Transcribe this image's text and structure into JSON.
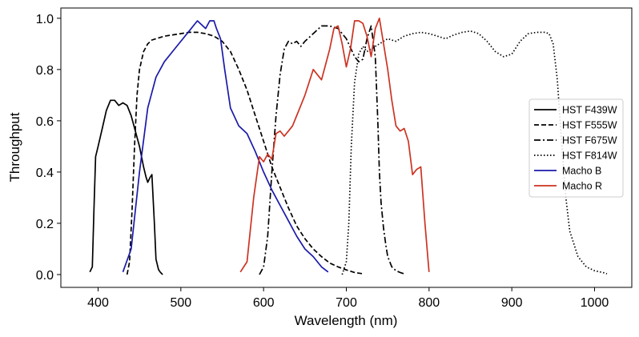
{
  "chart_data": {
    "type": "line",
    "title": "",
    "xlabel": "Wavelength (nm)",
    "ylabel": "Throughput",
    "xlim": [
      355,
      1045
    ],
    "ylim": [
      -0.05,
      1.04
    ],
    "xticks": [
      400,
      500,
      600,
      700,
      800,
      900,
      1000
    ],
    "yticks": [
      0.0,
      0.2,
      0.4,
      0.6,
      0.8,
      1.0
    ],
    "xtick_labels": [
      "400",
      "500",
      "600",
      "700",
      "800",
      "900",
      "1000"
    ],
    "ytick_labels": [
      "0.0",
      "0.2",
      "0.4",
      "0.6",
      "0.8",
      "1.0"
    ],
    "grid": false,
    "legend_position": "center-right",
    "series": [
      {
        "name": "HST F439W",
        "color": "#000000",
        "dash": "solid",
        "x": [
          390,
          393,
          395,
          397,
          400,
          405,
          410,
          415,
          420,
          425,
          430,
          435,
          440,
          445,
          450,
          455,
          458,
          460,
          463,
          465,
          468,
          470,
          473,
          475,
          478
        ],
        "y": [
          0.01,
          0.03,
          0.25,
          0.46,
          0.5,
          0.57,
          0.64,
          0.68,
          0.68,
          0.66,
          0.67,
          0.66,
          0.62,
          0.56,
          0.5,
          0.42,
          0.38,
          0.36,
          0.38,
          0.39,
          0.2,
          0.06,
          0.02,
          0.01,
          0.0
        ]
      },
      {
        "name": "HST F555W",
        "color": "#000000",
        "dash": "dashed",
        "x": [
          435,
          438,
          441,
          444,
          447,
          450,
          455,
          460,
          465,
          470,
          480,
          490,
          500,
          510,
          520,
          530,
          540,
          550,
          560,
          570,
          580,
          590,
          600,
          610,
          620,
          630,
          640,
          650,
          660,
          670,
          680,
          690,
          700,
          710,
          720
        ],
        "y": [
          0.0,
          0.05,
          0.25,
          0.5,
          0.7,
          0.8,
          0.87,
          0.9,
          0.915,
          0.92,
          0.93,
          0.935,
          0.94,
          0.945,
          0.945,
          0.94,
          0.93,
          0.91,
          0.87,
          0.8,
          0.72,
          0.62,
          0.52,
          0.42,
          0.34,
          0.26,
          0.19,
          0.14,
          0.1,
          0.07,
          0.045,
          0.03,
          0.018,
          0.008,
          0.003
        ]
      },
      {
        "name": "HST F675W",
        "color": "#000000",
        "dash": "dashdot",
        "x": [
          595,
          600,
          605,
          610,
          615,
          620,
          625,
          630,
          635,
          640,
          645,
          650,
          660,
          670,
          680,
          690,
          700,
          710,
          715,
          720,
          725,
          730,
          735,
          738,
          740,
          742,
          745,
          748,
          750,
          755,
          760,
          765,
          770
        ],
        "y": [
          0.0,
          0.03,
          0.15,
          0.4,
          0.62,
          0.78,
          0.88,
          0.91,
          0.9,
          0.91,
          0.89,
          0.91,
          0.94,
          0.97,
          0.97,
          0.96,
          0.92,
          0.85,
          0.83,
          0.84,
          0.92,
          0.97,
          0.85,
          0.6,
          0.4,
          0.28,
          0.18,
          0.11,
          0.07,
          0.03,
          0.015,
          0.008,
          0.003
        ]
      },
      {
        "name": "HST F814W",
        "color": "#000000",
        "dash": "dotted",
        "x": [
          695,
          700,
          703,
          706,
          710,
          715,
          720,
          725,
          730,
          740,
          750,
          760,
          770,
          780,
          790,
          800,
          810,
          820,
          830,
          840,
          850,
          860,
          870,
          880,
          890,
          900,
          910,
          920,
          930,
          940,
          945,
          950,
          955,
          960,
          965,
          970,
          980,
          990,
          1000,
          1010,
          1015
        ],
        "y": [
          0.0,
          0.05,
          0.2,
          0.5,
          0.75,
          0.86,
          0.89,
          0.87,
          0.88,
          0.9,
          0.92,
          0.91,
          0.93,
          0.94,
          0.945,
          0.94,
          0.93,
          0.92,
          0.935,
          0.945,
          0.95,
          0.94,
          0.91,
          0.87,
          0.85,
          0.86,
          0.91,
          0.94,
          0.945,
          0.945,
          0.94,
          0.9,
          0.76,
          0.52,
          0.31,
          0.17,
          0.07,
          0.03,
          0.015,
          0.008,
          0.003
        ]
      },
      {
        "name": "Macho B",
        "color": "#1a1aaa",
        "dash": "solid",
        "x": [
          430,
          440,
          450,
          460,
          470,
          480,
          490,
          500,
          510,
          520,
          530,
          535,
          540,
          543,
          548,
          553,
          560,
          570,
          580,
          590,
          600,
          610,
          620,
          630,
          640,
          650,
          660,
          670,
          678
        ],
        "y": [
          0.01,
          0.1,
          0.4,
          0.65,
          0.77,
          0.83,
          0.87,
          0.91,
          0.95,
          0.99,
          0.96,
          0.99,
          0.99,
          0.96,
          0.92,
          0.8,
          0.65,
          0.58,
          0.55,
          0.48,
          0.4,
          0.33,
          0.27,
          0.21,
          0.15,
          0.1,
          0.07,
          0.03,
          0.01
        ]
      },
      {
        "name": "Macho R",
        "color": "#cc3322",
        "dash": "solid",
        "x": [
          572,
          580,
          588,
          595,
          600,
          605,
          610,
          615,
          620,
          625,
          630,
          635,
          640,
          645,
          650,
          655,
          660,
          665,
          670,
          675,
          680,
          685,
          690,
          695,
          700,
          705,
          710,
          715,
          720,
          725,
          730,
          735,
          740,
          745,
          750,
          755,
          760,
          765,
          770,
          775,
          780,
          785,
          790,
          795,
          800
        ],
        "y": [
          0.01,
          0.05,
          0.3,
          0.46,
          0.44,
          0.47,
          0.45,
          0.55,
          0.56,
          0.54,
          0.56,
          0.58,
          0.62,
          0.66,
          0.7,
          0.75,
          0.8,
          0.78,
          0.76,
          0.82,
          0.88,
          0.96,
          0.97,
          0.9,
          0.81,
          0.88,
          0.99,
          0.99,
          0.98,
          0.93,
          0.85,
          0.96,
          1.0,
          0.9,
          0.8,
          0.68,
          0.58,
          0.56,
          0.57,
          0.52,
          0.39,
          0.41,
          0.42,
          0.2,
          0.01
        ]
      }
    ]
  }
}
